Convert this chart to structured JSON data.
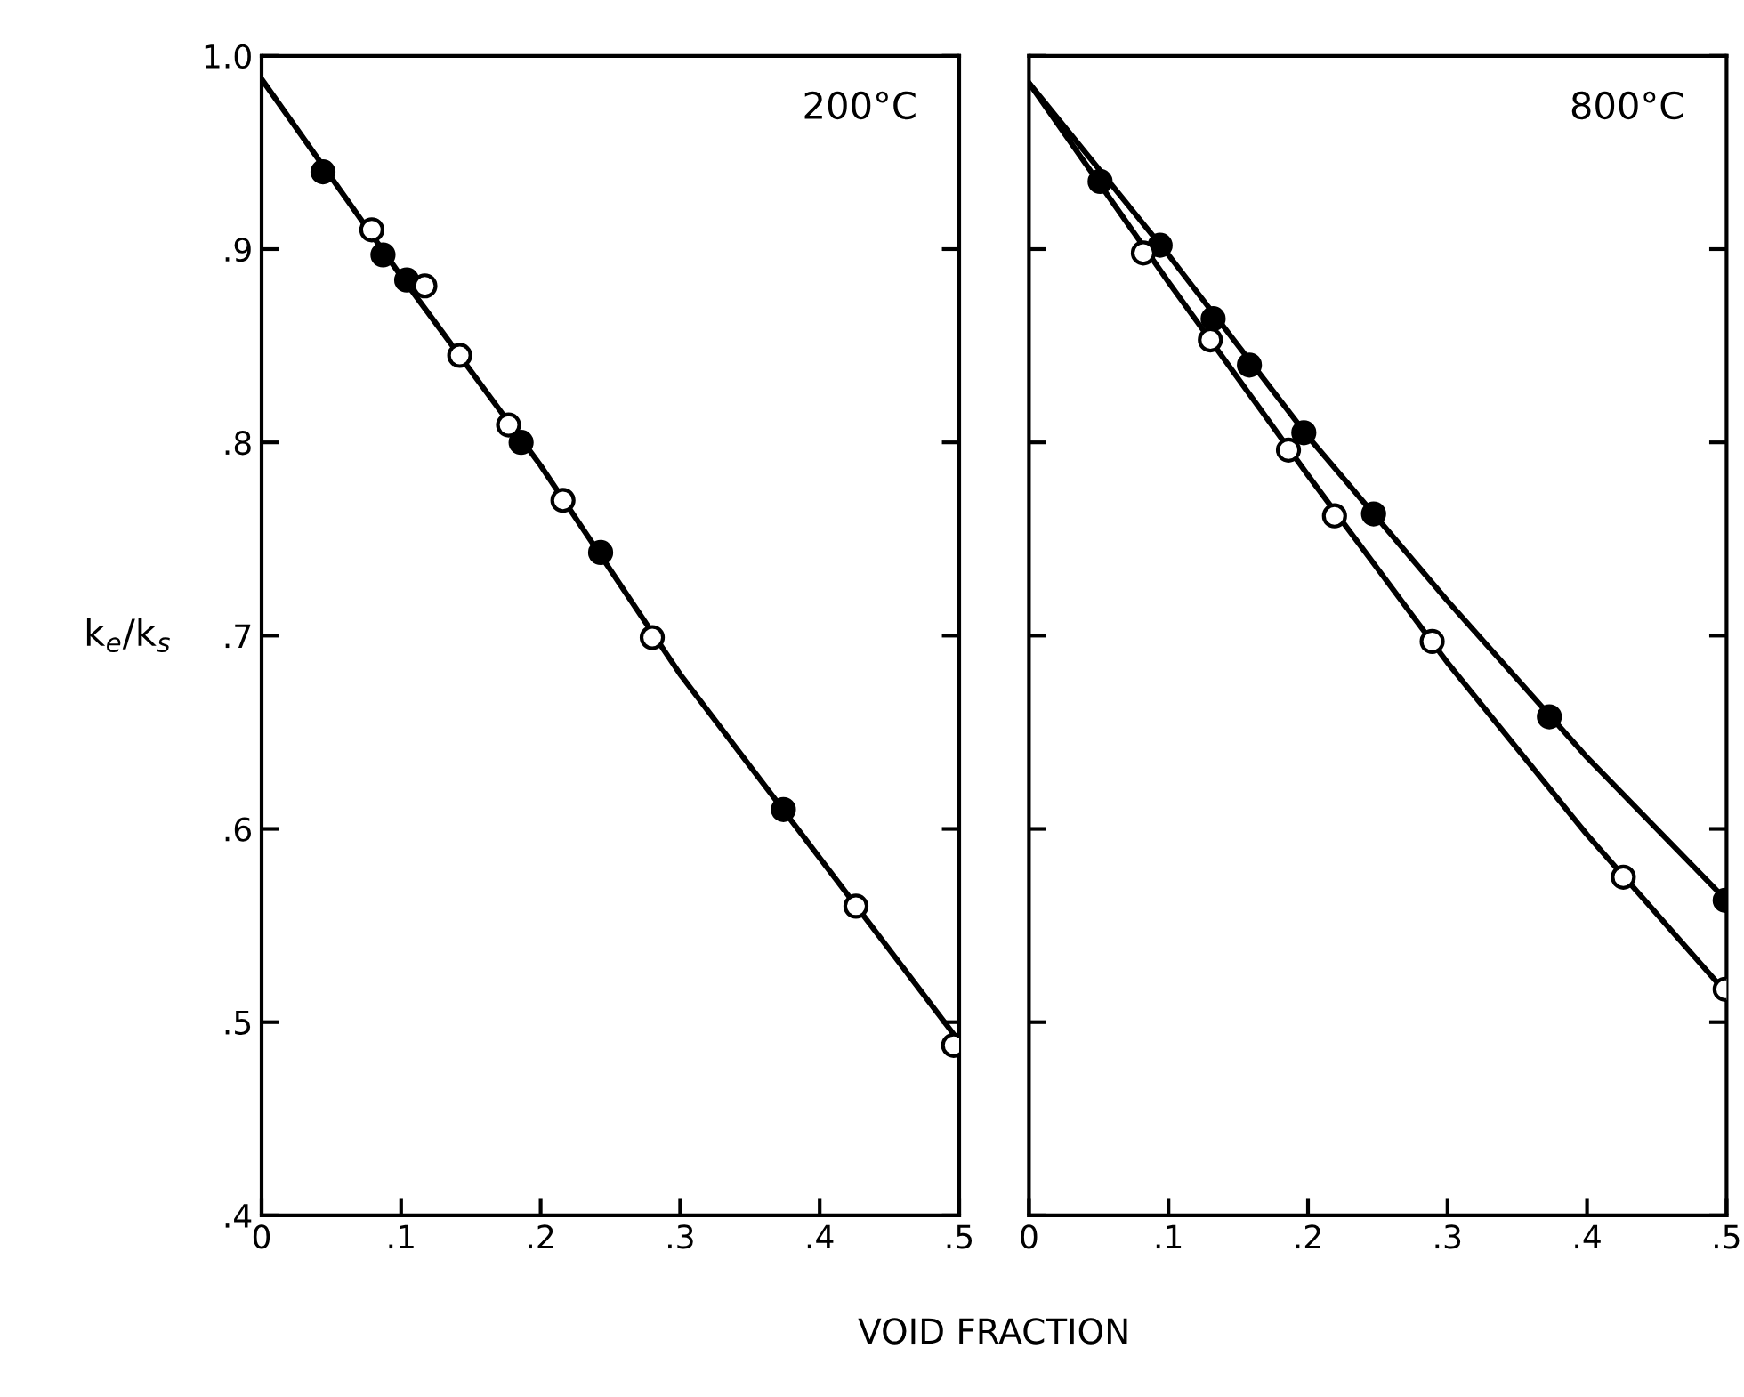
{
  "chart_data": [
    {
      "type": "scatter",
      "annotations": [
        "200°C"
      ],
      "ylabel": "k$_{e}$/k$_{s}$",
      "xlabel": "VOID FRACTION",
      "xlim": [
        0,
        0.5
      ],
      "ylim": [
        0.4,
        1.0
      ],
      "xticks": [
        0,
        {
          "value": 0.1,
          "label": ".1"
        },
        {
          "value": 0.2,
          "label": ".2"
        },
        {
          "value": 0.3,
          "label": ".3"
        },
        {
          "value": 0.4,
          "label": ".4"
        },
        {
          "value": 0.5,
          "label": ".5"
        }
      ],
      "yticks": [
        {
          "value": 0.4,
          "label": ".4"
        },
        {
          "value": 0.5,
          "label": ".5"
        },
        {
          "value": 0.6,
          "label": ".6"
        },
        {
          "value": 0.7,
          "label": ".7"
        },
        {
          "value": 0.8,
          "label": ".8"
        },
        {
          "value": 0.9,
          "label": ".9"
        },
        {
          "value": 1.0,
          "label": "1.0"
        }
      ],
      "series": [
        {
          "type": "line",
          "color": "#000000",
          "marker": "none",
          "x": [
            0,
            0.1,
            0.2,
            0.3,
            0.4,
            0.5
          ],
          "values": [
            0.988,
            0.886,
            0.788,
            0.68,
            0.585,
            0.49
          ]
        },
        {
          "color": "#000000",
          "marker": "circle",
          "x": [
            0.044,
            0.087,
            0.104,
            0.186,
            0.243,
            0.374
          ],
          "values": [
            0.94,
            0.897,
            0.884,
            0.8,
            0.743,
            0.61
          ]
        },
        {
          "color": "#ffffff",
          "marker": "circle",
          "x": [
            0.079,
            0.117,
            0.142,
            0.177,
            0.216,
            0.28,
            0.426,
            0.496
          ],
          "values": [
            0.91,
            0.881,
            0.845,
            0.809,
            0.77,
            0.699,
            0.56,
            0.488
          ]
        }
      ]
    },
    {
      "type": "scatter",
      "annotations": [
        "800°C"
      ],
      "tick_labels": "x",
      "xlim": [
        0,
        0.5
      ],
      "ylim": [
        0.4,
        1.0
      ],
      "xticks": [
        0,
        {
          "value": 0.1,
          "label": ".1"
        },
        {
          "value": 0.2,
          "label": ".2"
        },
        {
          "value": 0.3,
          "label": ".3"
        },
        {
          "value": 0.4,
          "label": ".4"
        },
        {
          "value": 0.5,
          "label": ".5"
        }
      ],
      "yticks": [
        {
          "value": 0.4,
          "label": null
        },
        {
          "value": 0.5,
          "label": null
        },
        {
          "value": 0.6,
          "label": null
        },
        {
          "value": 0.7,
          "label": null
        },
        {
          "value": 0.8,
          "label": null
        },
        {
          "value": 0.9,
          "label": null
        },
        {
          "value": 1.0,
          "label": null
        }
      ],
      "series": [
        {
          "type": "line",
          "color": "#000000",
          "marker": "none",
          "x": [
            0,
            0.1,
            0.2,
            0.3,
            0.4,
            0.5
          ],
          "values": [
            0.986,
            0.897,
            0.803,
            0.718,
            0.637,
            0.563
          ]
        },
        {
          "type": "line",
          "color": "#000000",
          "marker": "none",
          "x": [
            0,
            0.1,
            0.2,
            0.3,
            0.4,
            0.5
          ],
          "values": [
            0.986,
            0.883,
            0.783,
            0.686,
            0.597,
            0.515
          ]
        },
        {
          "color": "#000000",
          "marker": "circle",
          "x": [
            0.051,
            0.094,
            0.132,
            0.158,
            0.197,
            0.247,
            0.373,
            0.499
          ],
          "values": [
            0.935,
            0.902,
            0.864,
            0.84,
            0.805,
            0.763,
            0.658,
            0.563
          ]
        },
        {
          "color": "#ffffff",
          "marker": "circle",
          "x": [
            0.082,
            0.13,
            0.186,
            0.219,
            0.289,
            0.426,
            0.499
          ],
          "values": [
            0.898,
            0.853,
            0.796,
            0.762,
            0.697,
            0.575,
            0.517
          ]
        }
      ]
    }
  ]
}
